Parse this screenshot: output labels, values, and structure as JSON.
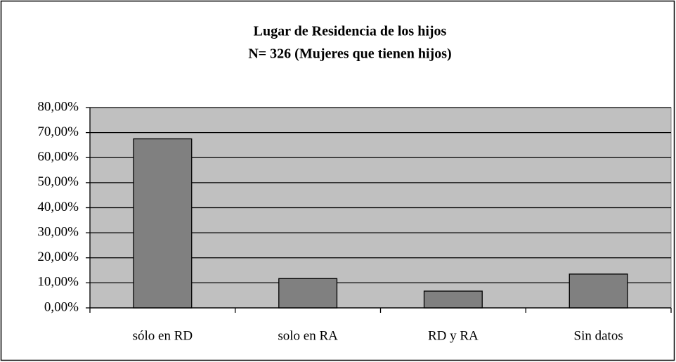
{
  "chart_data": {
    "type": "bar",
    "title": "Lugar de Residencia de los hijos",
    "subtitle": "N= 326 (Mujeres que tienen hijos)",
    "categories": [
      "sólo en RD",
      "solo en RA",
      "RD y RA",
      "Sin datos"
    ],
    "values": [
      67.5,
      11.7,
      6.7,
      13.5
    ],
    "color": "#808080",
    "plot_background": "#c0c0c0",
    "ylim": [
      0,
      80
    ],
    "yticks": [
      {
        "value": 0,
        "label": "0,00%"
      },
      {
        "value": 10,
        "label": "10,00%"
      },
      {
        "value": 20,
        "label": "20,00%"
      },
      {
        "value": 30,
        "label": "30,00%"
      },
      {
        "value": 40,
        "label": "40,00%"
      },
      {
        "value": 50,
        "label": "50,00%"
      },
      {
        "value": 60,
        "label": "60,00%"
      },
      {
        "value": 70,
        "label": "70,00%"
      },
      {
        "value": 80,
        "label": "80,00%"
      }
    ],
    "grid": true
  }
}
